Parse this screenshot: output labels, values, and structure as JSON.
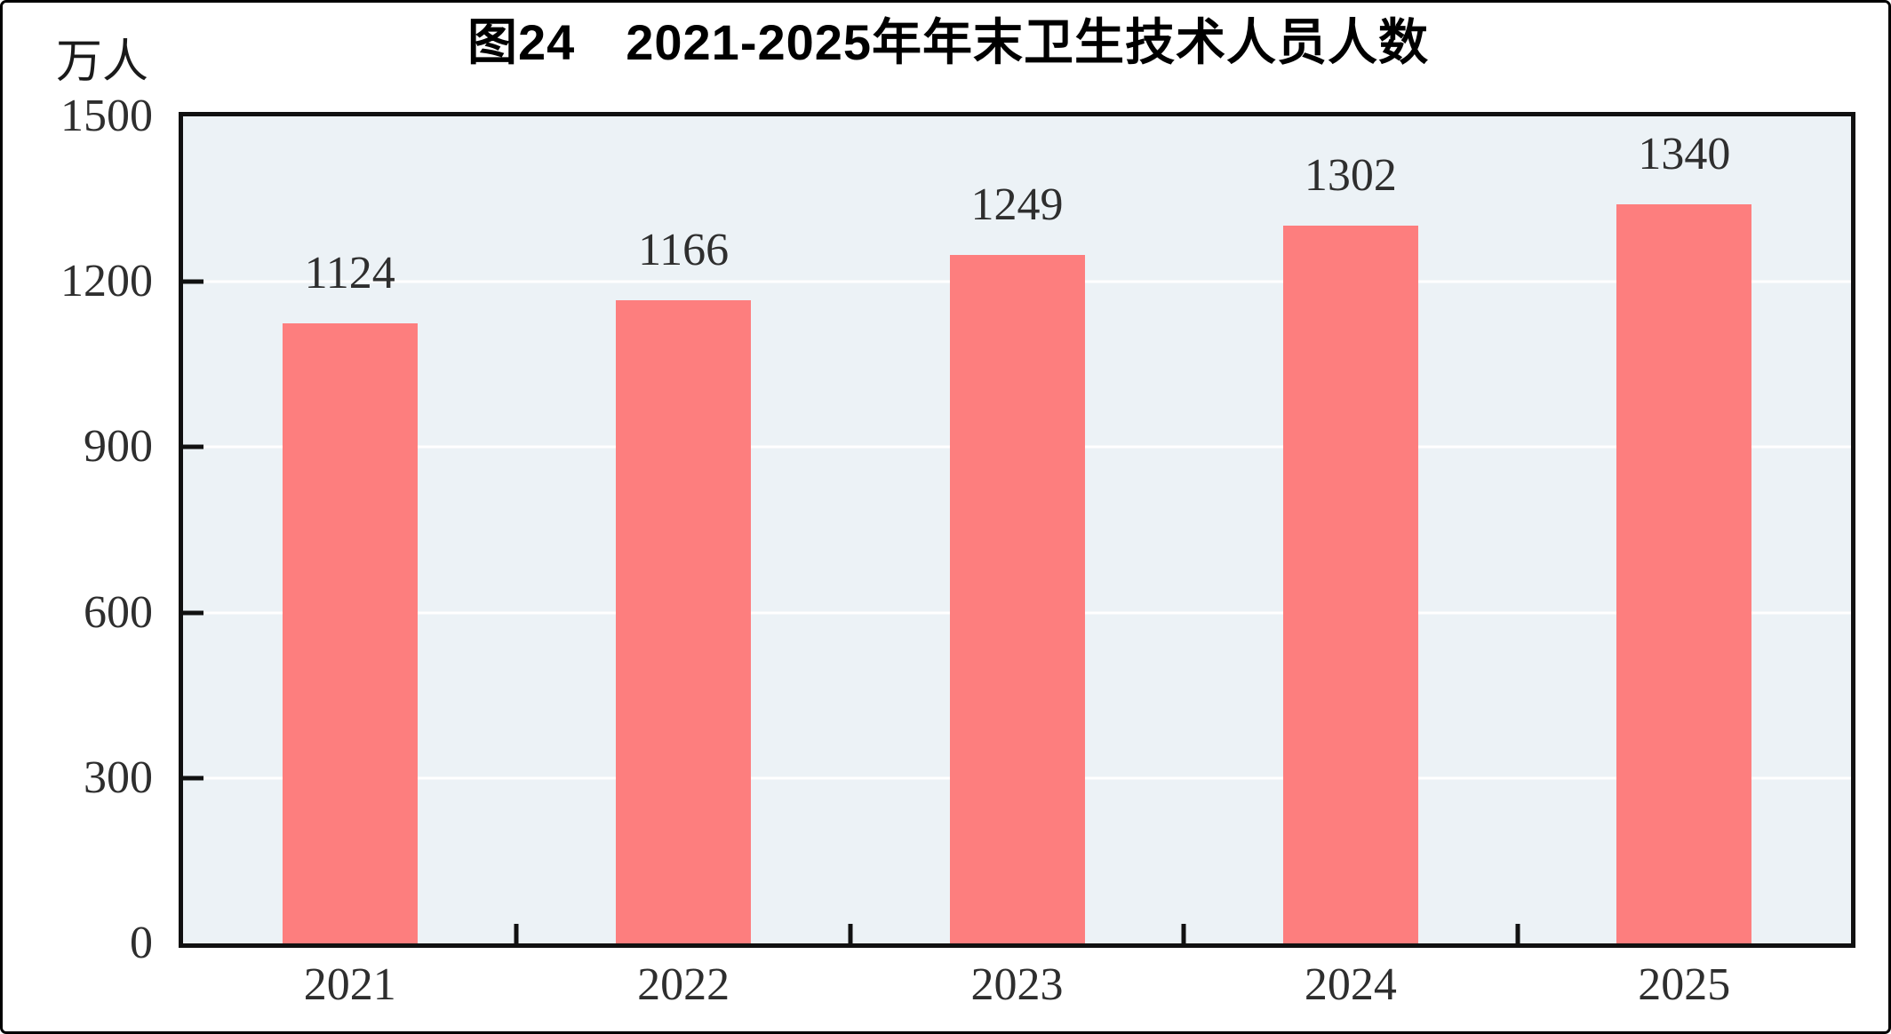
{
  "figure": {
    "title": "图24　2021-2025年年末卫生技术人员人数",
    "unit_label": "万人"
  },
  "chart_data": {
    "type": "bar",
    "title": "图24 2021-2025年年末卫生技术人员人数",
    "categories": [
      "2021",
      "2022",
      "2023",
      "2024",
      "2025"
    ],
    "values": [
      1124,
      1166,
      1249,
      1302,
      1340
    ],
    "xlabel": "",
    "ylabel": "万人",
    "ylim": [
      0,
      1500
    ],
    "yticks": [
      0,
      300,
      600,
      900,
      1200,
      1500
    ],
    "grid": "horizontal-white",
    "legend": "none",
    "bar_labels_shown": true,
    "colors": {
      "bar": "#fd7e7e",
      "plot_background": "#ecf2f6",
      "gridline": "#ffffff",
      "axis": "#111111",
      "label_text": "#2e2e2e",
      "title_text": "#000000"
    }
  }
}
